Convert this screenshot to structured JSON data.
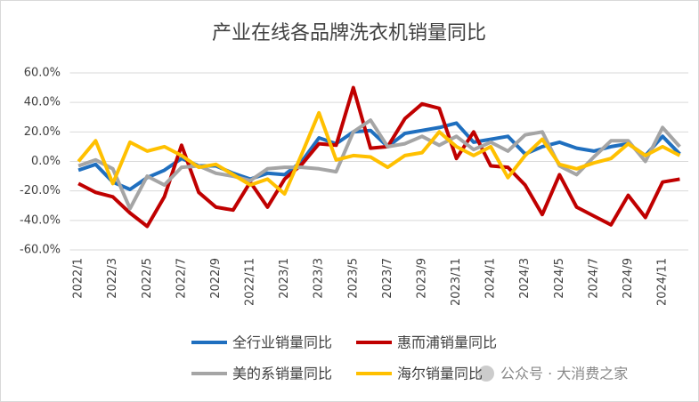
{
  "chart_data": {
    "type": "line",
    "title": "产业在线各品牌洗衣机销量同比",
    "categories": [
      "2022/1",
      null,
      "2022/3",
      null,
      "2022/5",
      null,
      "2022/7",
      null,
      "2022/9",
      null,
      "2022/11",
      null,
      "2023/1",
      null,
      "2023/3",
      null,
      "2023/5",
      null,
      "2023/7",
      null,
      "2023/9",
      null,
      "2023/11",
      null,
      "2024/1",
      null,
      "2024/3",
      null,
      "2024/5",
      null,
      "2024/7",
      null,
      "2024/9",
      null,
      "2024/11",
      null
    ],
    "series": [
      {
        "name": "全行业销量同比",
        "color": "#1f6fbf",
        "values": [
          -6,
          -2,
          -14,
          -19,
          -11,
          -6,
          2,
          -3,
          -3,
          -8,
          -12,
          -8,
          -9,
          0,
          16,
          12,
          20,
          21,
          10,
          19,
          21,
          23,
          26,
          13,
          15,
          17,
          5,
          10,
          13,
          9,
          7,
          10,
          12,
          4,
          17,
          5
        ]
      },
      {
        "name": "惠而浦销量同比",
        "color": "#c00000",
        "values": [
          -15,
          -21,
          -24,
          -35,
          -44,
          -24,
          11,
          -21,
          -31,
          -33,
          -14,
          -31,
          -12,
          -2,
          12,
          11,
          50,
          9,
          10,
          29,
          39,
          36,
          2,
          20,
          -3,
          -4,
          -16,
          -36,
          -9,
          -31,
          -37,
          -43,
          -23,
          -38,
          -14,
          -12
        ]
      },
      {
        "name": "美的系销量同比",
        "color": "#a5a5a5",
        "values": [
          -3,
          1,
          -5,
          -32,
          -10,
          -16,
          -4,
          -3,
          -8,
          -10,
          -13,
          -5,
          -4,
          -4,
          -5,
          -7,
          20,
          28,
          10,
          12,
          17,
          11,
          17,
          8,
          13,
          7,
          18,
          20,
          -3,
          -9,
          3,
          14,
          14,
          0,
          23,
          10
        ]
      },
      {
        "name": "海尔销量同比",
        "color": "#ffc000",
        "values": [
          0,
          14,
          -15,
          13,
          7,
          10,
          4,
          -4,
          -2,
          -9,
          -16,
          -12,
          -22,
          5,
          33,
          1,
          4,
          3,
          -4,
          4,
          6,
          20,
          10,
          4,
          10,
          -11,
          4,
          15,
          -2,
          -5,
          -1,
          2,
          12,
          4,
          10,
          4
        ]
      }
    ],
    "ylim": [
      -60,
      60
    ],
    "yticks": [
      {
        "value": -60,
        "label": "-60.0%"
      },
      {
        "value": -40,
        "label": "-40.0%"
      },
      {
        "value": -20,
        "label": "-20.0%"
      },
      {
        "value": 0,
        "label": "0.0%"
      },
      {
        "value": 20,
        "label": "20.0%"
      },
      {
        "value": 40,
        "label": "40.0%"
      },
      {
        "value": 60,
        "label": "60.0%"
      }
    ],
    "grid": true,
    "watermark": "公众号 · 大消费之家"
  }
}
